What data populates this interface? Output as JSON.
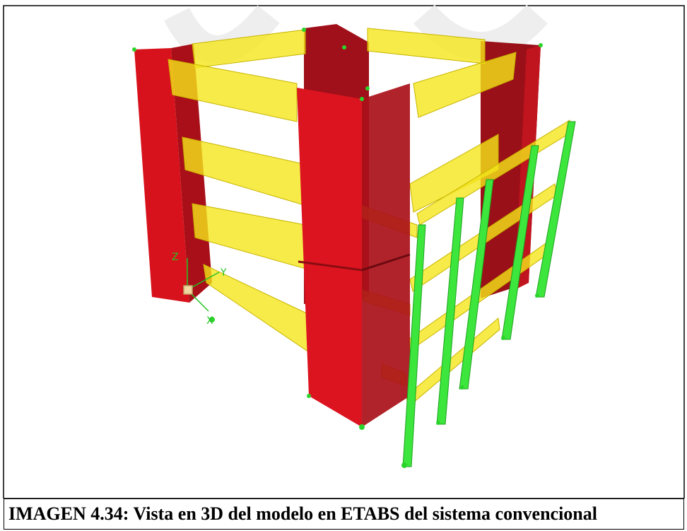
{
  "figure": {
    "axes": {
      "z": "Z",
      "y": "Y",
      "x": "X"
    }
  },
  "caption": "IMAGEN 4.34: Vista en 3D del modelo en ETABS del sistema convencional"
}
